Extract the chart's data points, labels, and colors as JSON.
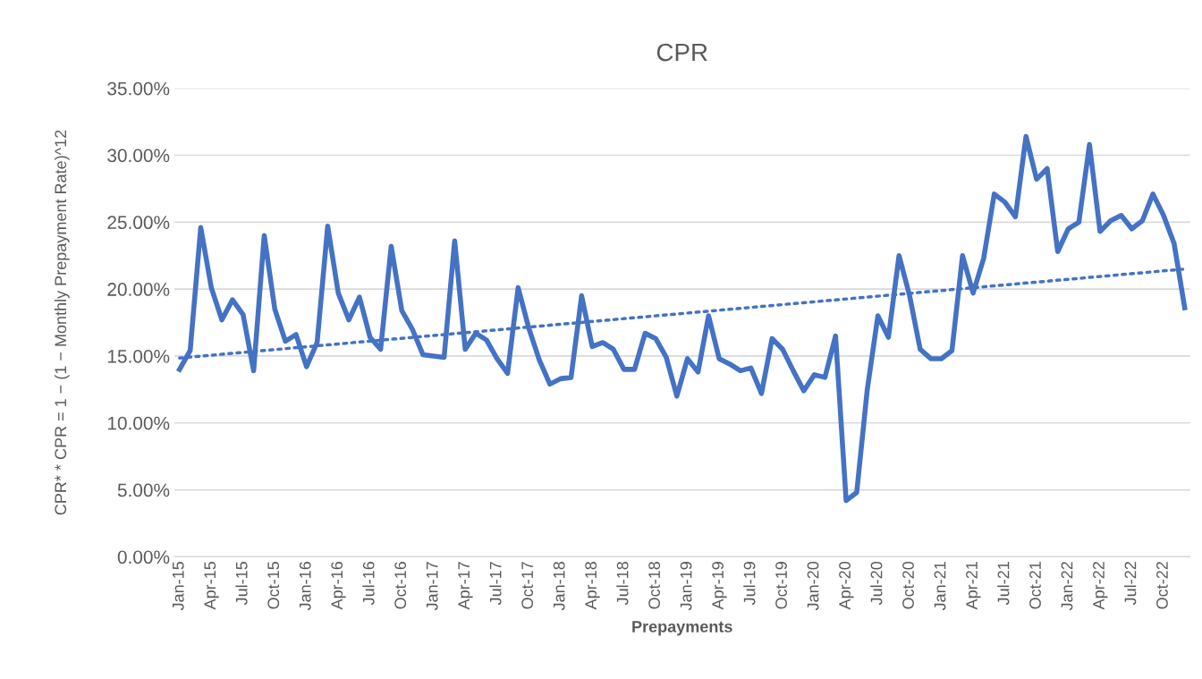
{
  "chart_data": {
    "type": "line",
    "title": "CPR",
    "xlabel": "Prepayments",
    "ylabel": "CPR* * CPR = 1 − (1 − Monthly Prepayment Rate)^12",
    "categories": [
      "Jan-15",
      null,
      null,
      "Apr-15",
      null,
      null,
      "Jul-15",
      null,
      null,
      "Oct-15",
      null,
      null,
      "Jan-16",
      null,
      null,
      "Apr-16",
      null,
      null,
      "Jul-16",
      null,
      null,
      "Oct-16",
      null,
      null,
      "Jan-17",
      null,
      null,
      "Apr-17",
      null,
      null,
      "Jul-17",
      null,
      null,
      "Oct-17",
      null,
      null,
      "Jan-18",
      null,
      null,
      "Apr-18",
      null,
      null,
      "Jul-18",
      null,
      null,
      "Oct-18",
      null,
      null,
      "Jan-19",
      null,
      null,
      "Apr-19",
      null,
      null,
      "Jul-19",
      null,
      null,
      "Oct-19",
      null,
      null,
      "Jan-20",
      null,
      null,
      "Apr-20",
      null,
      null,
      "Jul-20",
      null,
      null,
      "Oct-20",
      null,
      null,
      "Jan-21",
      null,
      null,
      "Apr-21",
      null,
      null,
      "Jul-21",
      null,
      null,
      "Oct-21",
      null,
      null,
      "Jan-22",
      null,
      null,
      "Apr-22",
      null,
      null,
      "Jul-22",
      null,
      null,
      "Oct-22",
      null,
      null
    ],
    "series": [
      {
        "color": "#4472c4",
        "line_style": "solid",
        "values": [
          14.0,
          15.4,
          24.6,
          20.1,
          17.7,
          19.2,
          18.1,
          13.9,
          24.0,
          18.5,
          16.1,
          16.6,
          14.2,
          16.0,
          24.7,
          19.7,
          17.7,
          19.4,
          16.4,
          15.5,
          23.2,
          18.4,
          17.0,
          15.1,
          15.0,
          14.9,
          23.6,
          15.5,
          16.7,
          16.2,
          14.8,
          13.7,
          20.1,
          17.1,
          14.7,
          12.9,
          13.3,
          13.4,
          19.5,
          15.7,
          16.0,
          15.5,
          14.0,
          14.0,
          16.7,
          16.3,
          14.9,
          12.0,
          14.8,
          13.8,
          18.0,
          14.8,
          14.4,
          13.9,
          14.1,
          12.2,
          16.3,
          15.5,
          13.9,
          12.4,
          13.6,
          13.4,
          16.5,
          4.2,
          4.8,
          12.5,
          18.0,
          16.4,
          22.5,
          19.5,
          15.5,
          14.8,
          14.8,
          15.4,
          22.5,
          19.7,
          22.3,
          27.1,
          26.5,
          25.4,
          31.4,
          28.2,
          29.0,
          22.8,
          24.5,
          25.0,
          30.8,
          24.3,
          25.1,
          25.5,
          24.5,
          25.1,
          27.1,
          25.5,
          23.4,
          18.6
        ]
      },
      {
        "type": "line",
        "color": "#4472c4",
        "line_style": "dotted",
        "values": [
          14.85,
          null,
          null,
          null,
          null,
          null,
          null,
          null,
          null,
          null,
          null,
          null,
          null,
          null,
          null,
          null,
          null,
          null,
          null,
          null,
          null,
          null,
          null,
          null,
          null,
          null,
          null,
          null,
          null,
          null,
          null,
          null,
          null,
          null,
          null,
          null,
          null,
          null,
          null,
          null,
          null,
          null,
          null,
          null,
          null,
          null,
          null,
          null,
          null,
          null,
          null,
          null,
          null,
          null,
          null,
          null,
          null,
          null,
          null,
          null,
          null,
          null,
          null,
          null,
          null,
          null,
          null,
          null,
          null,
          null,
          null,
          null,
          null,
          null,
          null,
          null,
          null,
          null,
          null,
          null,
          null,
          null,
          null,
          null,
          null,
          null,
          null,
          null,
          null,
          null,
          null,
          null,
          null,
          null,
          null,
          21.5
        ]
      }
    ],
    "ylim": [
      0,
      35
    ],
    "yticks": [
      {
        "value": 0,
        "label": "0.00%"
      },
      {
        "value": 5,
        "label": "5.00%"
      },
      {
        "value": 10,
        "label": "10.00%"
      },
      {
        "value": 15,
        "label": "15.00%"
      },
      {
        "value": 20,
        "label": "20.00%"
      },
      {
        "value": 25,
        "label": "25.00%"
      },
      {
        "value": 30,
        "label": "30.00%"
      },
      {
        "value": 35,
        "label": "35.00%"
      }
    ],
    "grid": "y",
    "marker": "none"
  }
}
